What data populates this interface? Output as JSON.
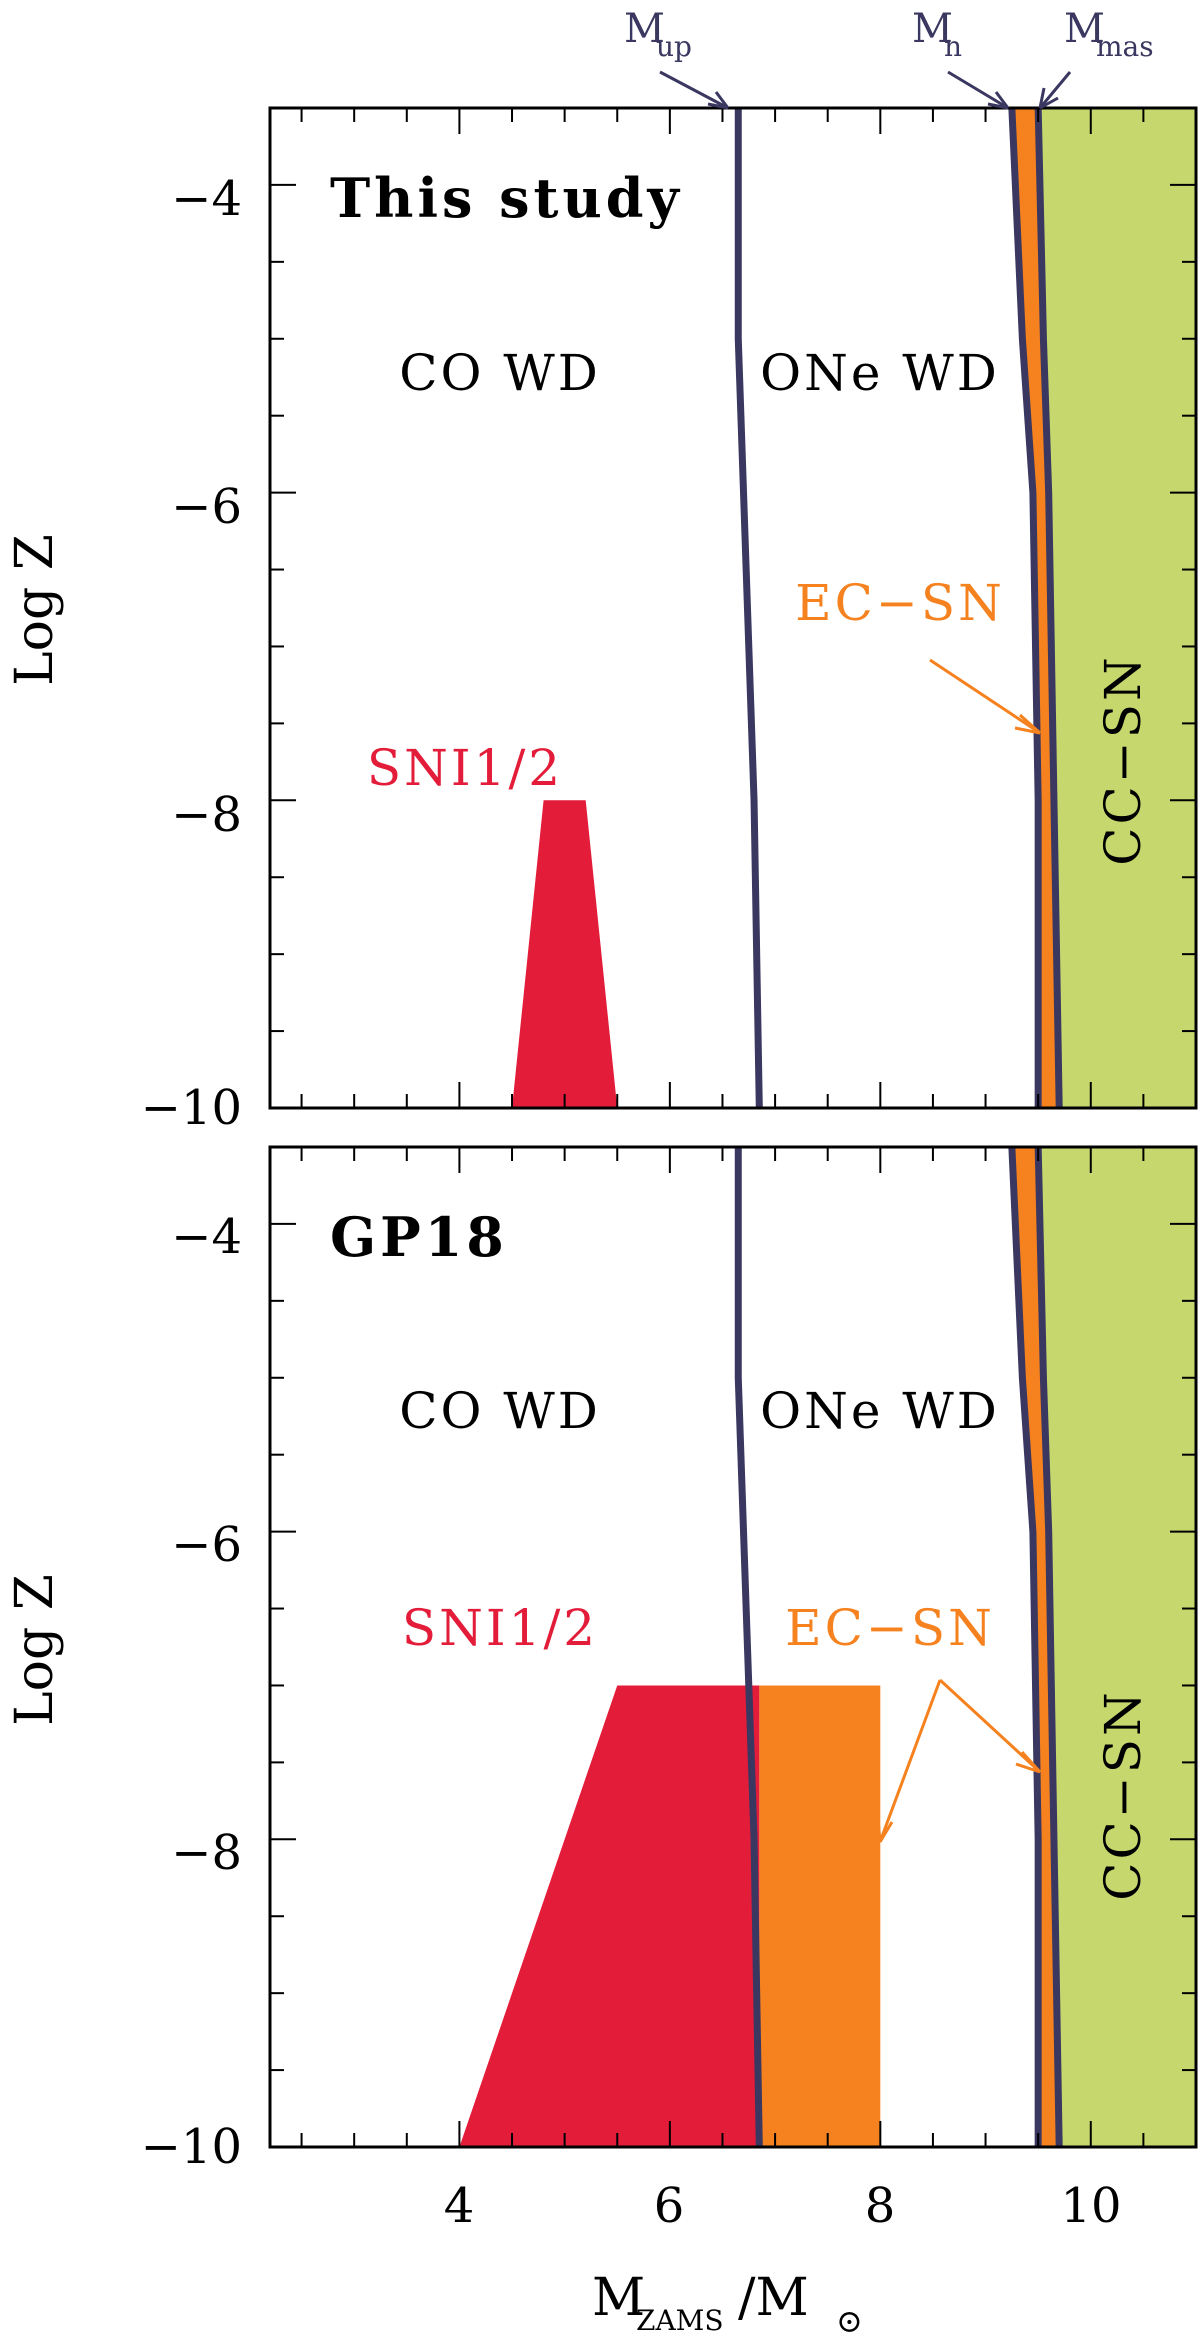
{
  "colors": {
    "boundary_line": "#3a3760",
    "ecsn": "#f5821f",
    "ccsn": "#c6d86d",
    "sni12": "#e31c3a"
  },
  "boundary_labels": {
    "mup": {
      "main": "M",
      "sub": "up"
    },
    "mn": {
      "main": "M",
      "sub": "n"
    },
    "mmas": {
      "main": "M",
      "sub": "mas"
    }
  },
  "axes": {
    "xlabel": {
      "main": "M",
      "sub1": "ZAMS",
      "slash": "/M",
      "sun": "⊙"
    },
    "ylabel": "Log Z",
    "xlim": [
      2.2,
      11.0
    ],
    "ylim": [
      -10.0,
      -3.5
    ],
    "xticks_major": [
      "4",
      "6",
      "8",
      "10"
    ],
    "yticks_major": [
      "−4",
      "−6",
      "−8",
      "−10"
    ]
  },
  "chart_data": [
    {
      "type": "area",
      "title": "This study",
      "xlabel": "M_ZAMS/M_⊙",
      "ylabel": "Log Z",
      "xlim": [
        2.2,
        11.0
      ],
      "ylim": [
        -10.0,
        -3.5
      ],
      "region_labels": {
        "co_wd": "CO WD",
        "one_wd": "ONe WD",
        "ecsn": "EC−SN",
        "ccsn": "CC−SN",
        "sni12": "SNI1/2"
      },
      "boundaries": {
        "M_up": {
          "x": [
            6.65,
            6.65,
            6.7,
            6.8,
            6.85
          ],
          "y": [
            -3.5,
            -5.0,
            -6.0,
            -8.0,
            -10.0
          ]
        },
        "M_n": {
          "x": [
            9.25,
            9.35,
            9.45,
            9.5,
            9.5
          ],
          "y": [
            -3.5,
            -5.0,
            -6.0,
            -8.0,
            -10.0
          ]
        },
        "M_mas": {
          "x": [
            9.5,
            9.55,
            9.6,
            9.65,
            9.7
          ],
          "y": [
            -3.5,
            -5.0,
            -6.0,
            -8.0,
            -10.0
          ]
        }
      },
      "sni12_region": {
        "x": [
          4.5,
          4.8,
          5.2,
          5.5
        ],
        "y": [
          -10.0,
          -8.0,
          -8.0,
          -10.0
        ]
      }
    },
    {
      "type": "area",
      "title": "GP18",
      "xlabel": "M_ZAMS/M_⊙",
      "ylabel": "Log Z",
      "xlim": [
        2.2,
        11.0
      ],
      "ylim": [
        -10.0,
        -3.5
      ],
      "region_labels": {
        "co_wd": "CO WD",
        "one_wd": "ONe WD",
        "ecsn": "EC−SN",
        "ccsn": "CC−SN",
        "sni12": "SNI1/2"
      },
      "boundaries": {
        "M_up": {
          "x": [
            6.65,
            6.65,
            6.7,
            6.8,
            6.85
          ],
          "y": [
            -3.5,
            -5.0,
            -6.0,
            -8.0,
            -10.0
          ]
        },
        "M_n": {
          "x": [
            9.25,
            9.35,
            9.45,
            9.5,
            9.5
          ],
          "y": [
            -3.5,
            -5.0,
            -6.0,
            -8.0,
            -10.0
          ]
        },
        "M_mas": {
          "x": [
            9.5,
            9.55,
            9.6,
            9.65,
            9.7
          ],
          "y": [
            -3.5,
            -5.0,
            -6.0,
            -8.0,
            -10.0
          ]
        }
      },
      "sni12_region": {
        "x": [
          4.0,
          5.5,
          6.85,
          6.85
        ],
        "y": [
          -10.0,
          -7.0,
          -7.0,
          -10.0
        ]
      },
      "ecsn_extra_region": {
        "x": [
          6.85,
          8.0,
          8.0,
          6.85
        ],
        "y": [
          -7.0,
          -7.0,
          -10.0,
          -10.0
        ]
      }
    }
  ]
}
